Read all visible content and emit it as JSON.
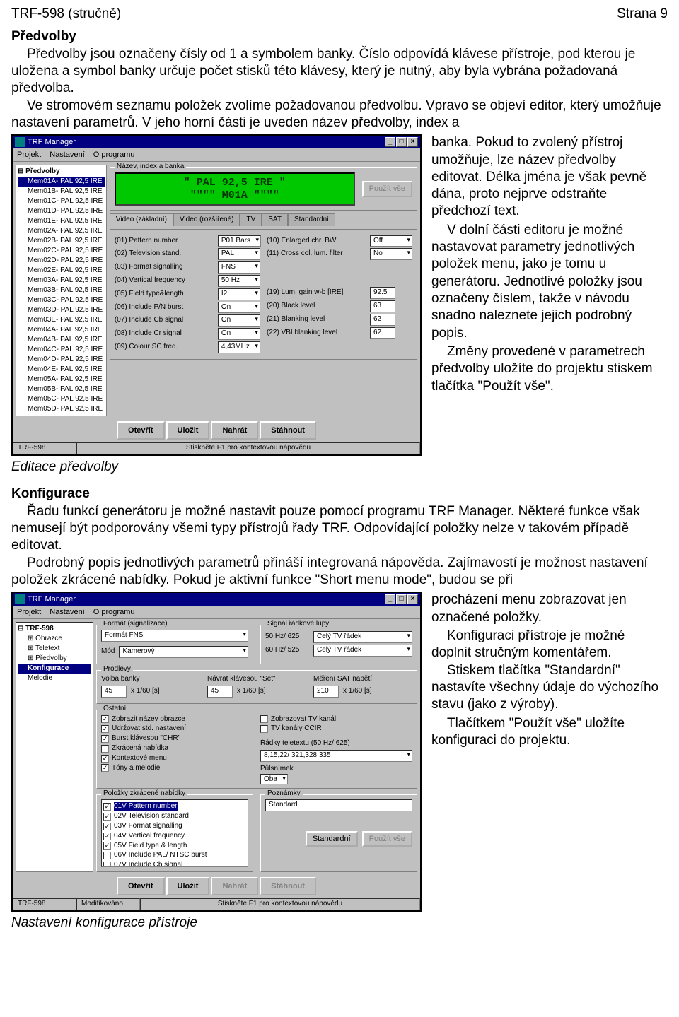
{
  "header": {
    "left": "TRF-598 (stručně)",
    "right": "Strana 9"
  },
  "s1": {
    "title": "Předvolby",
    "p1": "Předvolby jsou označeny čísly od 1 a symbolem banky. Číslo odpovídá klávese přístroje, pod kterou je uložena a symbol banky určuje počet stisků této klávesy, který je nutný, aby byla vybrána požadovaná předvolba.",
    "p2a": "Ve stromovém seznamu položek zvolíme požadovanou předvolbu. Vpravo se objeví editor, který umožňuje nastavení parametrů. V jeho horní části je uveden název předvolby, index a",
    "p2b": "banka. Pokud to zvolený přístroj umožňuje, lze název předvolby editovat. Délka jména je však pevně dána, proto nejprve odstraňte předchozí text.",
    "p3": "V dolní části editoru je možné nastavovat parametry jednotlivých položek menu, jako je tomu u generátoru. Jednotlivé položky jsou označeny číslem, takže v návodu snadno naleznete jejich podrobný popis.",
    "p4": "Změny provedené v parametrech předvolby uložíte do projektu stiskem tlačítka \"Použít vše\".",
    "caption": "Editace předvolby"
  },
  "win1": {
    "title": "TRF Manager",
    "menu": [
      "Projekt",
      "Nastavení",
      "O programu"
    ],
    "tree_root": "Předvolby",
    "tree_sel": "Mem01A- PAL 92,5 IRE",
    "tree_items": [
      "Mem01B- PAL 92,5 IRE",
      "Mem01C- PAL 92,5 IRE",
      "Mem01D- PAL 92,5 IRE",
      "Mem01E- PAL 92,5 IRE",
      "Mem02A- PAL 92,5 IRE",
      "Mem02B- PAL 92,5 IRE",
      "Mem02C- PAL 92,5 IRE",
      "Mem02D- PAL 92,5 IRE",
      "Mem02E- PAL 92,5 IRE",
      "Mem03A- PAL 92,5 IRE",
      "Mem03B- PAL 92,5 IRE",
      "Mem03C- PAL 92,5 IRE",
      "Mem03D- PAL 92,5 IRE",
      "Mem03E- PAL 92,5 IRE",
      "Mem04A- PAL 92,5 IRE",
      "Mem04B- PAL 92,5 IRE",
      "Mem04C- PAL 92,5 IRE",
      "Mem04D- PAL 92,5 IRE",
      "Mem04E- PAL 92,5 IRE",
      "Mem05A- PAL 92,5 IRE",
      "Mem05B- PAL 92,5 IRE",
      "Mem05C- PAL 92,5 IRE",
      "Mem05D- PAL 92,5 IRE"
    ],
    "grp_name": "Název, index a banka",
    "lcd_l1": "\"  PAL 92,5 IRE  \"",
    "lcd_l2": "\"\"\"\"   M01A   \"\"\"\"",
    "apply_all": "Použít vše",
    "tabs": [
      "Video (základní)",
      "Video (rozšířené)",
      "TV",
      "SAT",
      "Standardní"
    ],
    "rowsL": [
      {
        "l": "(01) Pattern number",
        "v": "P01 Bars"
      },
      {
        "l": "(02) Television stand.",
        "v": "PAL"
      },
      {
        "l": "(03) Format signalling",
        "v": "FNS"
      },
      {
        "l": "(04) Vertical frequency",
        "v": "50 Hz"
      },
      {
        "l": "(05) Field type&length",
        "v": "I2"
      },
      {
        "l": "(06) Include P/N burst",
        "v": "On"
      },
      {
        "l": "(07) Include Cb signal",
        "v": "On"
      },
      {
        "l": "(08) Include Cr signal",
        "v": "On"
      },
      {
        "l": "(09) Colour SC freq.",
        "v": "4,43MHz"
      }
    ],
    "rowsR": [
      {
        "l": "(10) Enlarged chr. BW",
        "v": "Off"
      },
      {
        "l": "(11) Cross col. lum. filter",
        "v": "No"
      },
      {
        "l": "(19) Lum. gain w-b [IRE]",
        "v": "92.5"
      },
      {
        "l": "(20) Black level",
        "v": "63"
      },
      {
        "l": "(21) Blanking level",
        "v": "62"
      },
      {
        "l": "(22) VBI blanking level",
        "v": "62"
      }
    ],
    "btns": [
      "Otevřít",
      "Uložit",
      "Nahrát",
      "Stáhnout"
    ],
    "status_l": "TRF-598",
    "status_r": "Stiskněte F1 pro kontextovou nápovědu"
  },
  "s2": {
    "title": "Konfigurace",
    "p1": "Řadu funkcí generátoru je možné nastavit pouze pomocí programu TRF Manager. Některé funkce však nemusejí být podporovány všemi typy přístrojů řady TRF. Odpovídající položky nelze v takovém případě editovat.",
    "p2": "Podrobný popis jednotlivých parametrů přináší integrovaná nápověda. Zajímavostí je možnost nastavení položek zkrácené nabídky. Pokud je aktivní funkce \"Short menu mode\", budou se při",
    "p3": "procházení menu zobrazovat jen označené položky.",
    "p4": "Konfiguraci přístroje je možné doplnit stručným komentářem.",
    "p5": "Stiskem tlačítka \"Standardní\" nastavíte všechny údaje do výchozího stavu (jako z výroby).",
    "p6": "Tlačítkem \"Použít vše\" uložíte konfiguraci do projektu.",
    "caption": "Nastavení konfigurace přístroje"
  },
  "win2": {
    "title": "TRF Manager",
    "menu": [
      "Projekt",
      "Nastavení",
      "O programu"
    ],
    "tree_root": "TRF-598",
    "tree": [
      "Obrazce",
      "Teletext",
      "Předvolby"
    ],
    "tree_sel": "Konfigurace",
    "tree_after": "Melodie",
    "grp_format": "Formát (signalizace)",
    "format_val": "Formát FNS",
    "mod_lbl": "Mód",
    "mod_val": "Kamerový",
    "grp_lupa": "Signál řádkové lupy",
    "lupa1_l": "50 Hz/ 625",
    "lupa1_v": "Celý TV řádek",
    "lupa2_l": "60 Hz/ 525",
    "lupa2_v": "Celý TV řádek",
    "grp_delay": "Prodlevy",
    "d1_l": "Volba banky",
    "d1_v": "45",
    "d1_u": "x 1/60 [s]",
    "d2_l": "Návrat klávesou \"Set\"",
    "d2_v": "45",
    "d2_u": "x 1/60 [s]",
    "d3_l": "Měření SAT napětí",
    "d3_v": "210",
    "d3_u": "x 1/60 [s]",
    "grp_other": "Ostatní",
    "chkL": [
      {
        "c": true,
        "t": "Zobrazit název obrazce"
      },
      {
        "c": true,
        "t": "Udržovat std. nastavení"
      },
      {
        "c": true,
        "t": "Burst klávesou \"CHR\""
      },
      {
        "c": false,
        "t": "Zkrácená nabídka"
      },
      {
        "c": true,
        "t": "Kontextové menu"
      },
      {
        "c": true,
        "t": "Tóny a melodie"
      }
    ],
    "chkR": [
      {
        "c": false,
        "t": "Zobrazovat TV kanál"
      },
      {
        "c": false,
        "t": "TV kanály CCIR"
      }
    ],
    "ttx_lbl": "Řádky teletextu (50 Hz/ 625)",
    "ttx_val": "8,15,22/ 321,328,335",
    "half_lbl": "Půlsnímek",
    "half_val": "Oba",
    "grp_short": "Položky zkrácené nabídky",
    "short": [
      {
        "c": true,
        "t": "01V Pattern number",
        "sel": true
      },
      {
        "c": true,
        "t": "02V Television standard"
      },
      {
        "c": true,
        "t": "03V Format signalling"
      },
      {
        "c": true,
        "t": "04V Vertical frequency"
      },
      {
        "c": true,
        "t": "05V Field type & length"
      },
      {
        "c": false,
        "t": "06V Include PAL/ NTSC burst"
      },
      {
        "c": false,
        "t": "07V Include Cb signal"
      }
    ],
    "note_lbl": "Poznámky",
    "note_val": "Standard",
    "std_btn": "Standardní",
    "apply_btn": "Použít vše",
    "btns": [
      "Otevřít",
      "Uložit",
      "Nahrát",
      "Stáhnout"
    ],
    "status_l": "TRF-598",
    "status_m": "Modifikováno",
    "status_r": "Stiskněte F1 pro kontextovou nápovědu"
  }
}
